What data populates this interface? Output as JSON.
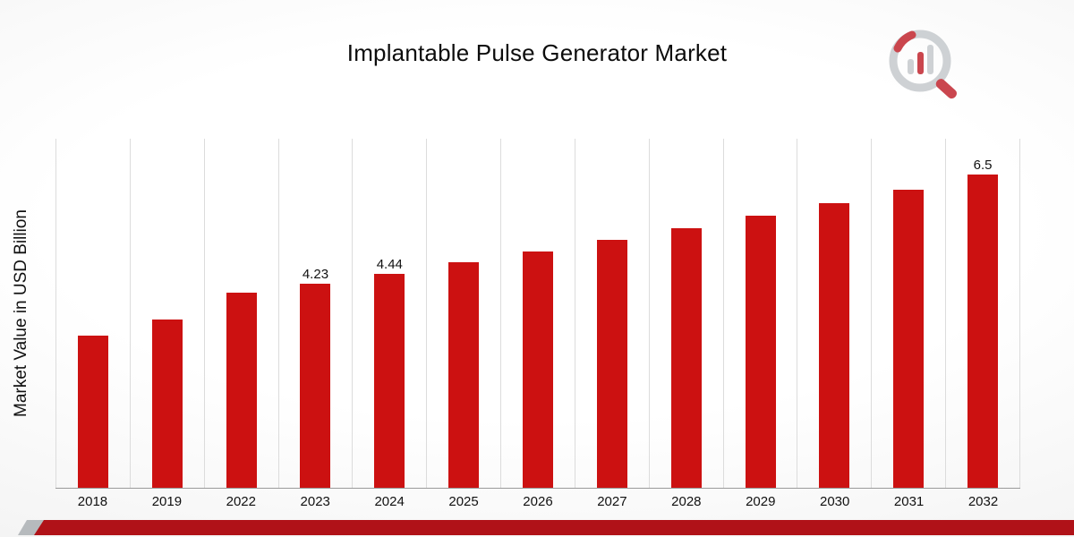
{
  "title": "Implantable Pulse Generator Market",
  "ylabel": "Market Value in USD Billion",
  "colors": {
    "bar-red": "#cc1111",
    "footer-red": "#b01218",
    "stripe-gray": "#b6babd",
    "logo-gray": "#c9cdd0",
    "logo-red": "#c5333b",
    "grid": "#dcdcdc"
  },
  "chart_data": {
    "type": "bar",
    "title": "Implantable Pulse Generator Market",
    "ylabel": "Market Value in USD Billion",
    "xlabel": "",
    "categories": [
      "2018",
      "2019",
      "2022",
      "2023",
      "2024",
      "2025",
      "2026",
      "2027",
      "2028",
      "2029",
      "2030",
      "2031",
      "2032"
    ],
    "values": [
      3.15,
      3.5,
      4.05,
      4.23,
      4.44,
      4.68,
      4.9,
      5.15,
      5.38,
      5.65,
      5.9,
      6.18,
      6.5
    ],
    "value_labels": [
      "",
      "",
      "",
      "4.23",
      "4.44",
      "",
      "",
      "",
      "",
      "",
      "",
      "",
      "6.5"
    ],
    "ylim": [
      0,
      7.25
    ],
    "bar_color": "#cc1111",
    "grid": "vertical",
    "legend": "none"
  }
}
